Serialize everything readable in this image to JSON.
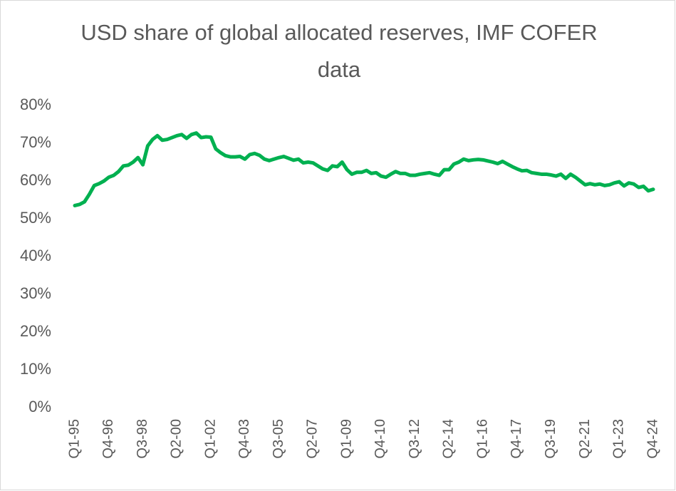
{
  "chart_data": {
    "type": "line",
    "title": "USD share of global allocated reserves, IMF COFER data",
    "categories": [
      "Q1-95",
      null,
      null,
      null,
      null,
      null,
      null,
      "Q4-96",
      null,
      null,
      null,
      null,
      null,
      null,
      "Q3-98",
      null,
      null,
      null,
      null,
      null,
      null,
      "Q2-00",
      null,
      null,
      null,
      null,
      null,
      null,
      "Q1-02",
      null,
      null,
      null,
      null,
      null,
      null,
      "Q4-03",
      null,
      null,
      null,
      null,
      null,
      null,
      "Q3-05",
      null,
      null,
      null,
      null,
      null,
      null,
      "Q2-07",
      null,
      null,
      null,
      null,
      null,
      null,
      "Q1-09",
      null,
      null,
      null,
      null,
      null,
      null,
      "Q4-10",
      null,
      null,
      null,
      null,
      null,
      null,
      "Q3-12",
      null,
      null,
      null,
      null,
      null,
      null,
      "Q2-14",
      null,
      null,
      null,
      null,
      null,
      null,
      "Q1-16",
      null,
      null,
      null,
      null,
      null,
      null,
      "Q4-17",
      null,
      null,
      null,
      null,
      null,
      null,
      "Q3-19",
      null,
      null,
      null,
      null,
      null,
      null,
      "Q2-21",
      null,
      null,
      null,
      null,
      null,
      null,
      "Q1-23",
      null,
      null,
      null,
      null,
      null,
      null,
      "Q4-24"
    ],
    "values": [
      53.5,
      53.8,
      54.5,
      56.5,
      58.8,
      59.3,
      60.0,
      61.0,
      61.5,
      62.5,
      64.0,
      64.2,
      65.0,
      66.2,
      64.3,
      69.3,
      71.0,
      72.0,
      70.8,
      71.0,
      71.5,
      72.0,
      72.3,
      71.3,
      72.3,
      72.7,
      71.5,
      71.7,
      71.6,
      68.5,
      67.5,
      66.7,
      66.4,
      66.4,
      66.5,
      65.8,
      67.0,
      67.3,
      66.8,
      65.8,
      65.4,
      65.8,
      66.2,
      66.5,
      66.0,
      65.5,
      65.8,
      64.8,
      65.0,
      64.8,
      64.0,
      63.2,
      62.8,
      64.0,
      63.8,
      65.0,
      63.0,
      61.8,
      62.3,
      62.3,
      62.8,
      62.0,
      62.2,
      61.3,
      61.0,
      61.8,
      62.5,
      62.0,
      62.0,
      61.5,
      61.5,
      61.8,
      62.0,
      62.2,
      61.8,
      61.5,
      63.0,
      63.0,
      64.5,
      65.0,
      65.8,
      65.4,
      65.6,
      65.7,
      65.6,
      65.3,
      65.0,
      64.6,
      65.2,
      64.5,
      63.8,
      63.2,
      62.7,
      62.8,
      62.2,
      62.0,
      61.8,
      61.8,
      61.6,
      61.3,
      61.8,
      60.7,
      61.8,
      61.0,
      60.0,
      59.0,
      59.3,
      59.0,
      59.2,
      58.8,
      59.0,
      59.5,
      59.8,
      58.7,
      59.5,
      59.2,
      58.3,
      58.6,
      57.4,
      57.8
    ],
    "color": "#00b050",
    "ylim": [
      0,
      80
    ],
    "yticks": [
      {
        "value": 0,
        "label": "0%"
      },
      {
        "value": 10,
        "label": "10%"
      },
      {
        "value": 20,
        "label": "20%"
      },
      {
        "value": 30,
        "label": "30%"
      },
      {
        "value": 40,
        "label": "40%"
      },
      {
        "value": 50,
        "label": "50%"
      },
      {
        "value": 60,
        "label": "60%"
      },
      {
        "value": 70,
        "label": "70%"
      },
      {
        "value": 80,
        "label": "80%"
      }
    ],
    "grid": false
  }
}
